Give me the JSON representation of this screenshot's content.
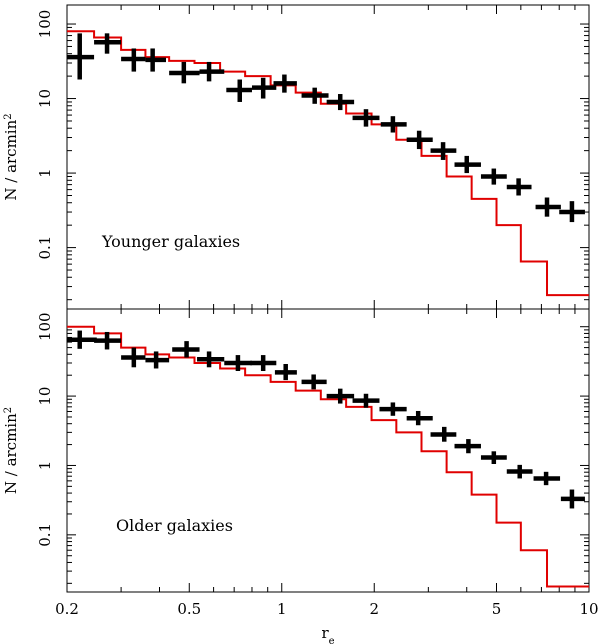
{
  "chart_data": [
    {
      "type": "line",
      "panel": "top",
      "annotation": "Younger galaxies",
      "ylabel": "N / arcmin",
      "ylabel_sup": "2",
      "xscale": "log",
      "yscale": "log",
      "xlim": [
        0.2,
        10
      ],
      "ylim": [
        0.015,
        180
      ],
      "yticks": [
        {
          "v": 100,
          "label": "100"
        },
        {
          "v": 10,
          "label": "10"
        },
        {
          "v": 1,
          "label": "1"
        },
        {
          "v": 0.1,
          "label": "0.1"
        }
      ],
      "series": [
        {
          "name": "observed",
          "style": "points-with-errorbars",
          "color": "#000000",
          "x": [
            0.22,
            0.27,
            0.33,
            0.38,
            0.48,
            0.58,
            0.73,
            0.87,
            1.02,
            1.28,
            1.55,
            1.88,
            2.3,
            2.8,
            3.35,
            4.0,
            4.9,
            5.9,
            7.3,
            8.8
          ],
          "xerr": [
            [
              0.2,
              0.245
            ],
            [
              0.245,
              0.3
            ],
            [
              0.3,
              0.36
            ],
            [
              0.36,
              0.42
            ],
            [
              0.43,
              0.54
            ],
            [
              0.54,
              0.65
            ],
            [
              0.66,
              0.8
            ],
            [
              0.8,
              0.96
            ],
            [
              0.94,
              1.12
            ],
            [
              1.16,
              1.42
            ],
            [
              1.4,
              1.72
            ],
            [
              1.7,
              2.08
            ],
            [
              2.1,
              2.55
            ],
            [
              2.55,
              3.1
            ],
            [
              3.05,
              3.7
            ],
            [
              3.65,
              4.45
            ],
            [
              4.45,
              5.4
            ],
            [
              5.4,
              6.5
            ],
            [
              6.7,
              8.1
            ],
            [
              8.0,
              9.7
            ]
          ],
          "y": [
            36,
            57,
            34,
            33,
            22,
            23,
            13,
            14,
            16,
            11,
            9,
            5.5,
            4.5,
            2.8,
            2.0,
            1.3,
            0.9,
            0.65,
            0.35,
            0.3
          ],
          "yerr": [
            [
              18,
              75
            ],
            [
              40,
              75
            ],
            [
              23,
              47
            ],
            [
              23,
              47
            ],
            [
              16,
              31
            ],
            [
              17,
              31
            ],
            [
              9,
              18
            ],
            [
              10,
              19
            ],
            [
              12,
              21
            ],
            [
              8.5,
              14
            ],
            [
              7,
              11.5
            ],
            [
              4.2,
              7.2
            ],
            [
              3.5,
              5.8
            ],
            [
              2.1,
              3.7
            ],
            [
              1.5,
              2.6
            ],
            [
              1.0,
              1.7
            ],
            [
              0.7,
              1.15
            ],
            [
              0.5,
              0.85
            ],
            [
              0.26,
              0.47
            ],
            [
              0.22,
              0.42
            ]
          ]
        },
        {
          "name": "model",
          "style": "step",
          "color": "#e00000",
          "edges": [
            0.2,
            0.245,
            0.3,
            0.36,
            0.43,
            0.52,
            0.63,
            0.76,
            0.92,
            1.11,
            1.34,
            1.62,
            1.96,
            2.36,
            2.85,
            3.44,
            4.15,
            5.0,
            6.0,
            7.3,
            10
          ],
          "values": [
            80,
            66,
            45,
            36,
            32,
            30,
            23,
            20,
            15,
            12,
            8.5,
            6.3,
            4.5,
            2.8,
            1.7,
            0.9,
            0.45,
            0.2,
            0.065,
            0.023
          ]
        }
      ]
    },
    {
      "type": "line",
      "panel": "bottom",
      "annotation": "Older galaxies",
      "ylabel": "N / arcmin",
      "ylabel_sup": "2",
      "xlabel": "r",
      "xlabel_sub": "e",
      "xscale": "log",
      "yscale": "log",
      "xlim": [
        0.2,
        10
      ],
      "ylim": [
        0.015,
        180
      ],
      "xticks": [
        {
          "v": 0.2,
          "label": "0.2"
        },
        {
          "v": 0.5,
          "label": "0.5"
        },
        {
          "v": 1,
          "label": "1"
        },
        {
          "v": 2,
          "label": "2"
        },
        {
          "v": 5,
          "label": "5"
        },
        {
          "v": 10,
          "label": "10"
        }
      ],
      "yticks": [
        {
          "v": 100,
          "label": "100"
        },
        {
          "v": 10,
          "label": "10"
        },
        {
          "v": 1,
          "label": "1"
        },
        {
          "v": 0.1,
          "label": "0.1"
        }
      ],
      "series": [
        {
          "name": "observed",
          "style": "points-with-errorbars",
          "color": "#000000",
          "x": [
            0.22,
            0.27,
            0.33,
            0.39,
            0.49,
            0.58,
            0.72,
            0.87,
            1.03,
            1.27,
            1.55,
            1.88,
            2.3,
            2.78,
            3.38,
            4.05,
            4.9,
            5.95,
            7.25,
            8.8
          ],
          "xerr": [
            [
              0.2,
              0.25
            ],
            [
              0.245,
              0.3
            ],
            [
              0.3,
              0.36
            ],
            [
              0.36,
              0.43
            ],
            [
              0.44,
              0.54
            ],
            [
              0.53,
              0.65
            ],
            [
              0.65,
              0.8
            ],
            [
              0.79,
              0.96
            ],
            [
              0.95,
              1.12
            ],
            [
              1.16,
              1.4
            ],
            [
              1.4,
              1.72
            ],
            [
              1.7,
              2.08
            ],
            [
              2.08,
              2.55
            ],
            [
              2.55,
              3.1
            ],
            [
              3.05,
              3.7
            ],
            [
              3.65,
              4.45
            ],
            [
              4.45,
              5.4
            ],
            [
              5.4,
              6.55
            ],
            [
              6.6,
              8.05
            ],
            [
              8.1,
              9.7
            ]
          ],
          "y": [
            65,
            63,
            36,
            33,
            47,
            34,
            30,
            30,
            22,
            16,
            10,
            8.6,
            6.5,
            4.8,
            2.8,
            1.9,
            1.3,
            0.82,
            0.65,
            0.33
          ],
          "yerr": [
            [
              48,
              88
            ],
            [
              47,
              84
            ],
            [
              26,
              50
            ],
            [
              25,
              44
            ],
            [
              36,
              62
            ],
            [
              26,
              44
            ],
            [
              23,
              39
            ],
            [
              23,
              39
            ],
            [
              17,
              29
            ],
            [
              12.5,
              20.5
            ],
            [
              7.8,
              12.8
            ],
            [
              6.8,
              10.8
            ],
            [
              5.2,
              8.1
            ],
            [
              3.8,
              6.1
            ],
            [
              2.2,
              3.6
            ],
            [
              1.5,
              2.4
            ],
            [
              1.05,
              1.6
            ],
            [
              0.65,
              1.02
            ],
            [
              0.52,
              0.81
            ],
            [
              0.24,
              0.45
            ]
          ]
        },
        {
          "name": "model",
          "style": "step",
          "color": "#e00000",
          "edges": [
            0.2,
            0.245,
            0.3,
            0.36,
            0.43,
            0.52,
            0.63,
            0.76,
            0.92,
            1.11,
            1.34,
            1.62,
            1.96,
            2.36,
            2.85,
            3.44,
            4.15,
            5.0,
            6.0,
            7.3,
            10
          ],
          "values": [
            100,
            80,
            50,
            40,
            36,
            30,
            25,
            20,
            16,
            12,
            9,
            7,
            4.5,
            3,
            1.6,
            0.8,
            0.38,
            0.15,
            0.06,
            0.018
          ]
        }
      ]
    }
  ]
}
